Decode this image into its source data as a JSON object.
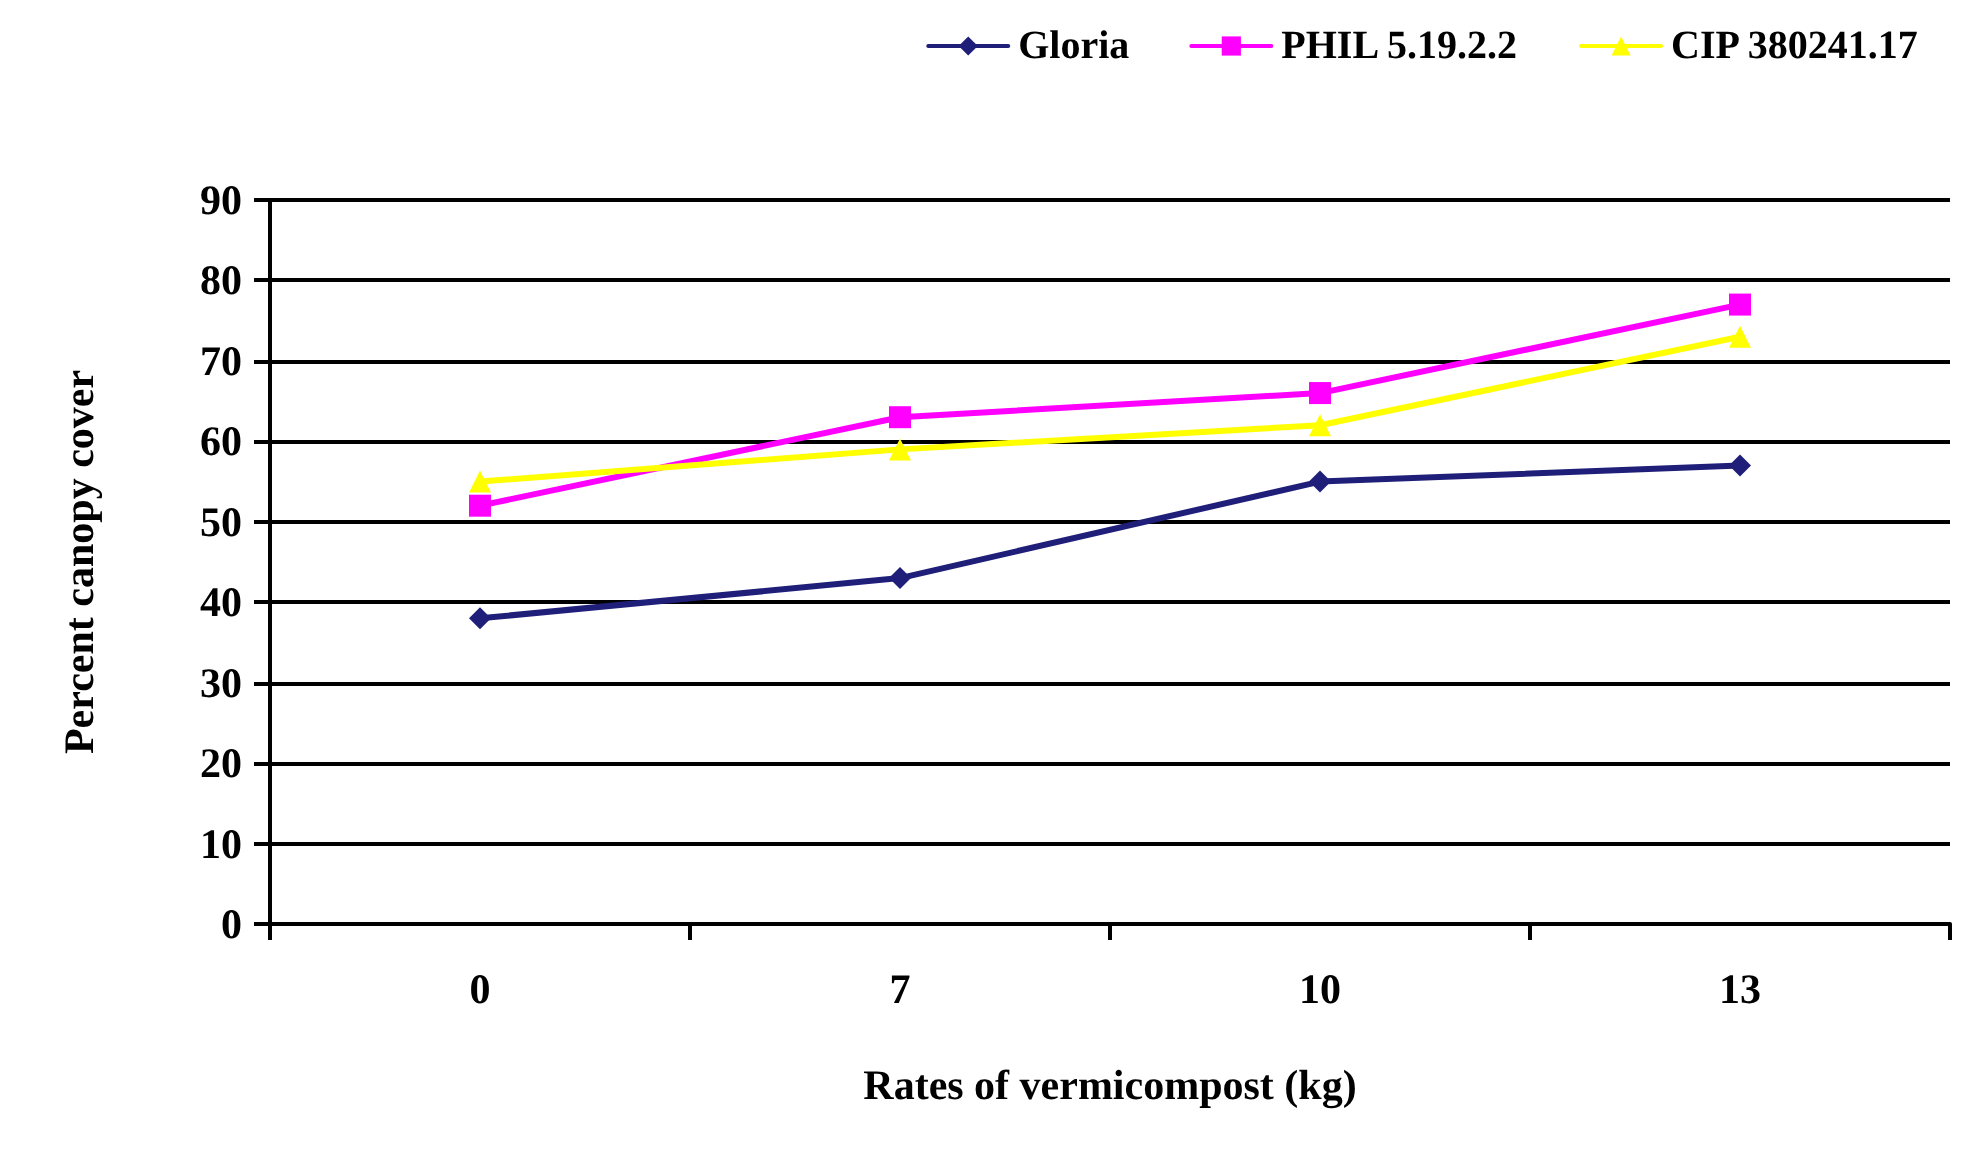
{
  "chart_data": {
    "type": "line",
    "xlabel": "Rates of vermicompost (kg)",
    "ylabel": "Percent canopy cover",
    "categories": [
      "0",
      "7",
      "10",
      "13"
    ],
    "series": [
      {
        "name": "Gloria",
        "color": "#1f1f7a",
        "marker": "diamond",
        "values": [
          38,
          43,
          55,
          57
        ]
      },
      {
        "name": "PHIL 5.19.2.2",
        "color": "#ff00ff",
        "marker": "square",
        "values": [
          52,
          63,
          66,
          77
        ]
      },
      {
        "name": "CIP 380241.17",
        "color": "#ffff00",
        "marker": "triangle",
        "values": [
          55,
          59,
          62,
          73
        ]
      }
    ],
    "ylim": [
      0,
      90
    ],
    "yticks": [
      0,
      10,
      20,
      30,
      40,
      50,
      60,
      70,
      80,
      90
    ],
    "grid": "y",
    "legend": "top right",
    "line_style": "solid"
  }
}
